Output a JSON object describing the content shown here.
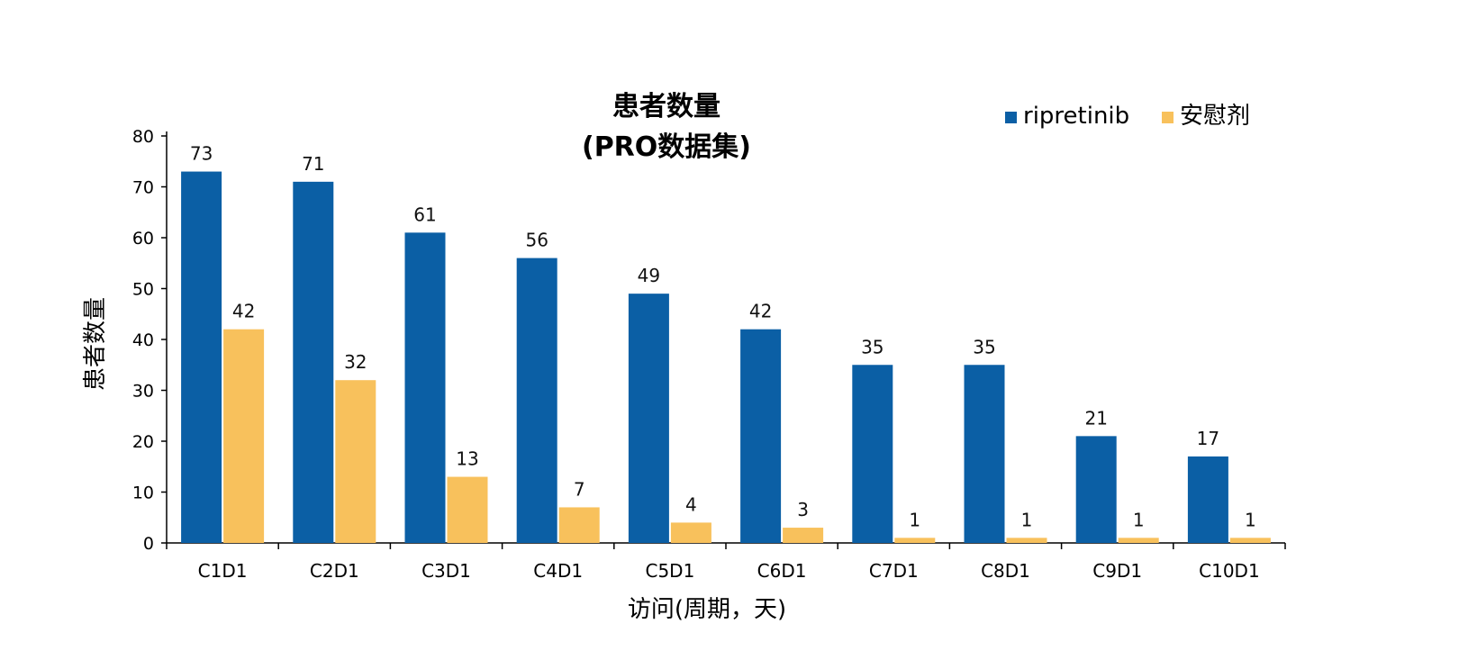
{
  "chart_data": {
    "type": "bar",
    "title": [
      "患者数量",
      "(PRO数据集)"
    ],
    "xlabel": "访问(周期，天)",
    "ylabel": "患者数量",
    "ylim": [
      0,
      80
    ],
    "yticks": [
      0,
      10,
      20,
      30,
      40,
      50,
      60,
      70,
      80
    ],
    "categories": [
      "C1D1",
      "C2D1",
      "C3D1",
      "C4D1",
      "C5D1",
      "C6D1",
      "C7D1",
      "C8D1",
      "C9D1",
      "C10D1"
    ],
    "series": [
      {
        "name": "ripretinib",
        "color": "#0b5fa5",
        "values": [
          73,
          71,
          61,
          56,
          49,
          42,
          35,
          35,
          21,
          17
        ]
      },
      {
        "name": "安慰剂",
        "color": "#f8c15c",
        "values": [
          42,
          32,
          13,
          7,
          4,
          3,
          1,
          1,
          1,
          1
        ]
      }
    ],
    "legend": "top-right",
    "grid": false
  }
}
